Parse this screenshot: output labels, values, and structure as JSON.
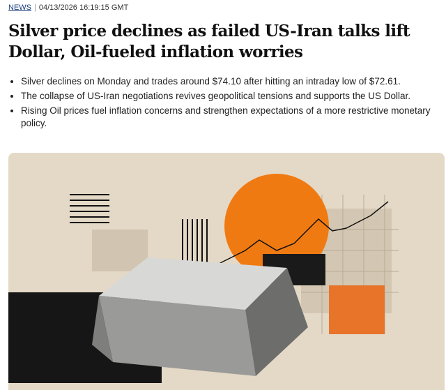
{
  "meta": {
    "category": "NEWS",
    "separator": "|",
    "timestamp": "04/13/2026 16:19:15 GMT"
  },
  "headline": "Silver price declines as failed US-Iran talks lift Dollar, Oil-fueled inflation worries",
  "bullets": [
    "Silver declines on Monday and trades around $74.10 after hitting an intraday low of $72.61.",
    "The collapse of US-Iran negotiations revives geopolitical tensions and supports the US Dollar.",
    "Rising Oil prices fuel inflation concerns and strengthen expectations of a more restrictive monetary policy."
  ],
  "colors": {
    "accent": "#f07a12",
    "background": "#e4d9c6",
    "link": "#1a3d7c"
  }
}
